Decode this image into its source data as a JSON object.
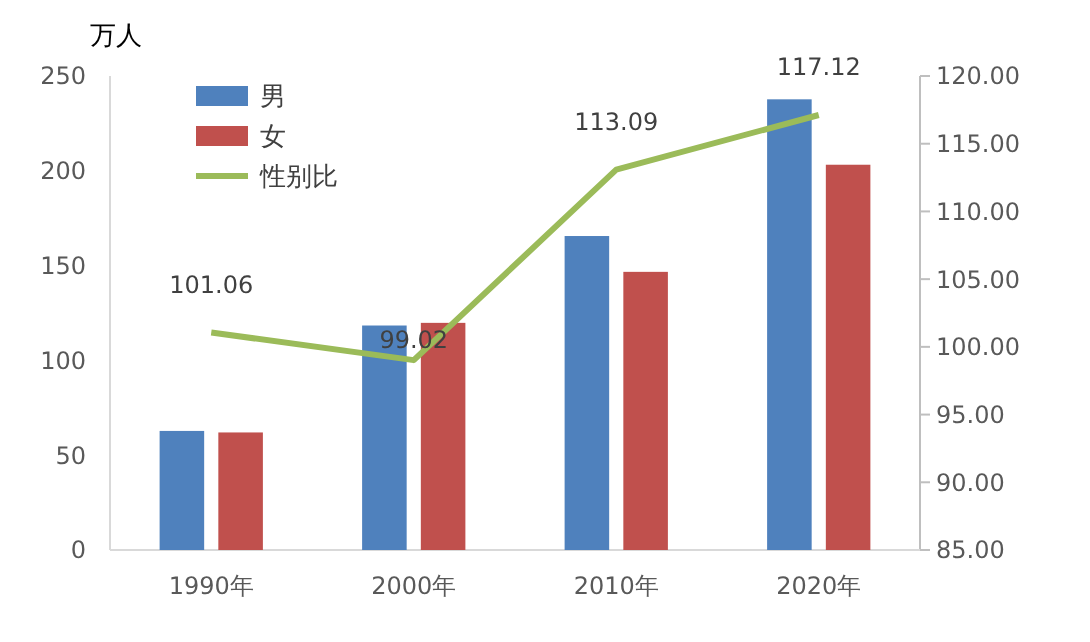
{
  "chart_data": {
    "type": "bar",
    "ylabel": "万人",
    "categories": [
      "1990年",
      "2000年",
      "2010年",
      "2020年"
    ],
    "series": [
      {
        "name": "男",
        "color": "#4f81bd",
        "values": [
          62.8,
          118.4,
          165.6,
          237.7
        ]
      },
      {
        "name": "女",
        "color": "#c0504d",
        "values": [
          62,
          119.8,
          146.7,
          203.2
        ]
      },
      {
        "name": "性别比",
        "type": "line",
        "axis": "y2",
        "color": "#9bbb59",
        "values": [
          101.06,
          99.02,
          113.09,
          117.12
        ],
        "value_labels": [
          "101.06",
          "99.02",
          "113.09",
          "117.12"
        ]
      }
    ],
    "ylim": [
      0,
      250
    ],
    "yticks": [
      0,
      50,
      100,
      150,
      200,
      250
    ],
    "y2lim": [
      85,
      120
    ],
    "y2ticks": [
      {
        "value": 85,
        "label": "85.00"
      },
      {
        "value": 90,
        "label": "90.00"
      },
      {
        "value": 95,
        "label": "95.00"
      },
      {
        "value": 100,
        "label": "100.00"
      },
      {
        "value": 105,
        "label": "105.00"
      },
      {
        "value": 110,
        "label": "110.00"
      },
      {
        "value": 115,
        "label": "115.00"
      },
      {
        "value": 120,
        "label": "120.00"
      }
    ],
    "grid": false,
    "legend": "top left",
    "marker": "none"
  }
}
